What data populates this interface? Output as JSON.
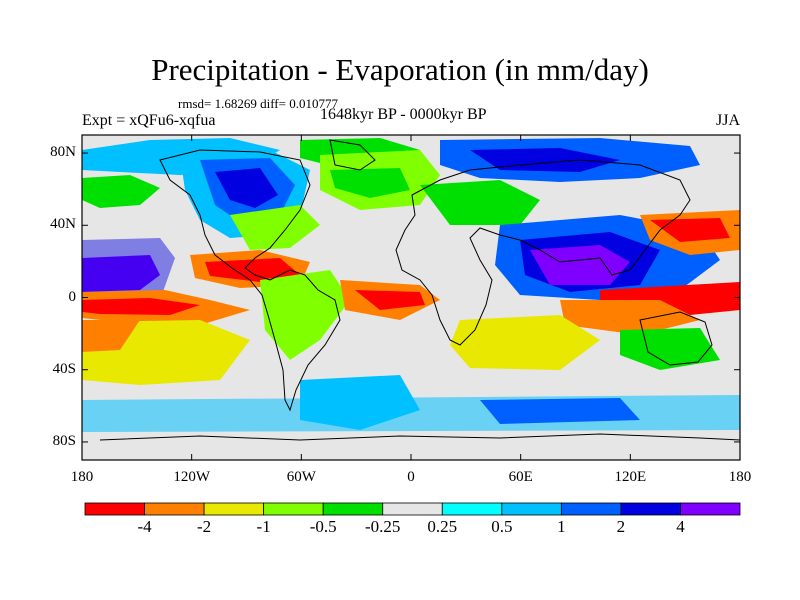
{
  "title": "Precipitation - Evaporation (in mm/day)",
  "stats": "rmsd= 1.68269 diff= 0.010777",
  "experiment": "Expt = xQFu6-xqfua",
  "period": "1648kyr BP - 0000kyr BP",
  "season": "JJA",
  "lat_axis": {
    "ticks": [
      "80N",
      "40N",
      "0",
      "40S",
      "80S"
    ],
    "values": [
      80,
      40,
      0,
      -40,
      -80
    ]
  },
  "lon_axis": {
    "ticks": [
      "180",
      "120W",
      "60W",
      "0",
      "60E",
      "120E",
      "180"
    ],
    "values": [
      -180,
      -120,
      -60,
      0,
      60,
      120,
      180
    ]
  },
  "colorbar": {
    "labels": [
      "-4",
      "-2",
      "-1",
      "-0.5",
      "-0.25",
      "0.25",
      "0.5",
      "1",
      "2",
      "4"
    ],
    "colors": [
      "#ff0000",
      "#ff8000",
      "#e8e800",
      "#80ff00",
      "#00e000",
      "#e6e6e6",
      "#00ffff",
      "#00c0ff",
      "#0060ff",
      "#0000e0",
      "#8000ff"
    ]
  }
}
